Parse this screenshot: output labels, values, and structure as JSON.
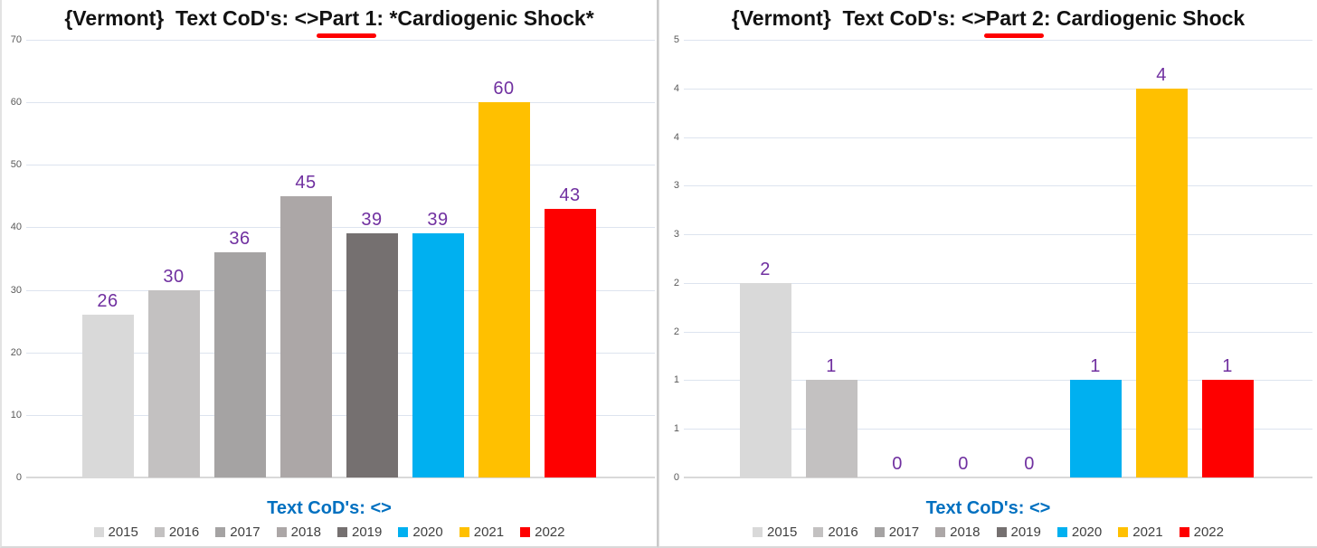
{
  "page": {
    "background": "#ffffff",
    "divider_color": "#c9c9c9"
  },
  "styles": {
    "data_label_color": "#7030a0",
    "axis_title_color": "#0070c0",
    "tick_color": "#595959",
    "gridline_color": "#dde4ef",
    "underline_color": "#fe0000",
    "legend_text_color": "#3f3f3f"
  },
  "chart_data": [
    {
      "type": "bar",
      "title": {
        "prefix": "{Vermont}  Text CoD's: <>",
        "underlined": "Part 1",
        "suffix": ": *Cardiogenic Shock*"
      },
      "xlabel": "Text CoD's: <>",
      "categories": [
        "2015",
        "2016",
        "2017",
        "2018",
        "2019",
        "2020",
        "2021",
        "2022"
      ],
      "values": [
        26,
        30,
        36,
        45,
        39,
        39,
        60,
        43
      ],
      "bar_colors": [
        "#d9d9d9",
        "#c3c1c1",
        "#a5a3a3",
        "#aca7a7",
        "#757070",
        "#00b0f0",
        "#ffc000",
        "#fe0000"
      ],
      "ylim": [
        0,
        70
      ],
      "yticks": [
        {
          "value": 0,
          "label": "0"
        },
        {
          "value": 10,
          "label": "10"
        },
        {
          "value": 20,
          "label": "20"
        },
        {
          "value": 30,
          "label": "30"
        },
        {
          "value": 40,
          "label": "40"
        },
        {
          "value": 50,
          "label": "50"
        },
        {
          "value": 60,
          "label": "60"
        },
        {
          "value": 70,
          "label": "70"
        }
      ],
      "grid": true,
      "legend_position": "bottom"
    },
    {
      "type": "bar",
      "title": {
        "prefix": "{Vermont}  Text CoD's: <>",
        "underlined": "Part 2",
        "suffix": ": Cardiogenic Shock"
      },
      "xlabel": "Text CoD's: <>",
      "categories": [
        "2015",
        "2016",
        "2017",
        "2018",
        "2019",
        "2020",
        "2021",
        "2022"
      ],
      "values": [
        2,
        1,
        0,
        0,
        0,
        1,
        4,
        1
      ],
      "bar_colors": [
        "#d9d9d9",
        "#c3c1c1",
        "#a5a3a3",
        "#aca7a7",
        "#757070",
        "#00b0f0",
        "#ffc000",
        "#fe0000"
      ],
      "ylim": [
        0,
        4.5
      ],
      "yticks": [
        {
          "value": 0,
          "label": "0"
        },
        {
          "value": 0.5,
          "label": "1"
        },
        {
          "value": 1,
          "label": "1"
        },
        {
          "value": 1.5,
          "label": "2"
        },
        {
          "value": 2,
          "label": "2"
        },
        {
          "value": 2.5,
          "label": "3"
        },
        {
          "value": 3,
          "label": "3"
        },
        {
          "value": 3.5,
          "label": "4"
        },
        {
          "value": 4,
          "label": "4"
        },
        {
          "value": 4.5,
          "label": "5"
        }
      ],
      "grid": true,
      "legend_position": "bottom"
    }
  ]
}
